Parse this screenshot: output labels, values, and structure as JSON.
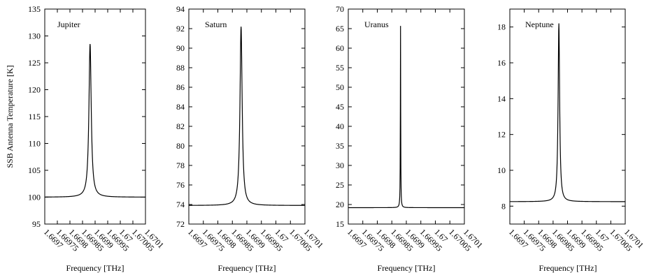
{
  "figure": {
    "ylabel": "SSB Antenna Temperature [K]"
  },
  "chart_data": [
    {
      "type": "line",
      "title": "Jupiter",
      "xlabel": "Frequency [THz]",
      "ylabel": "SSB Antenna Temperature [K]",
      "xlim": [
        1.6697,
        1.6701
      ],
      "ylim": [
        95,
        135
      ],
      "xticks": [
        "1.6697",
        "1.66975",
        "1.6698",
        "1.66985",
        "1.6699",
        "1.66995",
        "1.67",
        "1.67005",
        "1.6701"
      ],
      "yticks": [
        "95",
        "100",
        "105",
        "110",
        "115",
        "120",
        "125",
        "130",
        "135"
      ],
      "grid": false,
      "line": {
        "baseline": 100,
        "peak": 128.5,
        "center": 1.66988,
        "halfwidth": 5.5e-06
      },
      "series": [
        {
          "x": [
            1.6697,
            1.66975,
            1.6698,
            1.66983,
            1.66985,
            1.669865,
            1.66988,
            1.669895,
            1.66991,
            1.66993,
            1.66995,
            1.67,
            1.67005,
            1.6701
          ],
          "y": [
            100.1,
            100.3,
            101.0,
            102.5,
            105.5,
            112.0,
            128.5,
            112.0,
            105.5,
            102.5,
            101.6,
            100.6,
            100.3,
            100.1
          ]
        }
      ]
    },
    {
      "type": "line",
      "title": "Saturn",
      "xlabel": "Frequency [THz]",
      "xlim": [
        1.6697,
        1.6701
      ],
      "ylim": [
        72,
        94
      ],
      "xticks": [
        "1.6697",
        "1.66975",
        "1.6698",
        "1.66985",
        "1.6699",
        "1.66995",
        "1.67",
        "1.67005",
        "1.6701"
      ],
      "yticks": [
        "72",
        "74",
        "76",
        "78",
        "80",
        "82",
        "84",
        "86",
        "88",
        "90",
        "92",
        "94"
      ],
      "grid": false,
      "line": {
        "baseline": 73.9,
        "peak": 92.2,
        "center": 1.66988,
        "halfwidth": 4.5e-06
      },
      "series": [
        {
          "x": [
            1.6697,
            1.66975,
            1.6698,
            1.66983,
            1.66985,
            1.669865,
            1.66988,
            1.669895,
            1.66991,
            1.66993,
            1.66995,
            1.67,
            1.67005,
            1.6701
          ],
          "y": [
            73.9,
            74.0,
            74.4,
            75.3,
            76.8,
            81.0,
            92.2,
            81.0,
            76.8,
            75.3,
            74.6,
            74.1,
            74.0,
            73.9
          ]
        }
      ]
    },
    {
      "type": "line",
      "title": "Uranus",
      "xlabel": "Frequency [THz]",
      "xlim": [
        1.6697,
        1.6701
      ],
      "ylim": [
        15,
        70
      ],
      "xticks": [
        "1.6697",
        "1.66975",
        "1.6698",
        "1.66985",
        "1.6699",
        "1.66995",
        "1.67",
        "1.67005",
        "1.6701"
      ],
      "yticks": [
        "15",
        "20",
        "25",
        "30",
        "35",
        "40",
        "45",
        "50",
        "55",
        "60",
        "65",
        "70"
      ],
      "grid": false,
      "line": {
        "baseline": 19.2,
        "peak": 65.7,
        "center": 1.66988,
        "halfwidth": 7e-07
      },
      "series": [
        {
          "x": [
            1.6697,
            1.6698,
            1.66986,
            1.66987,
            1.669875,
            1.66988,
            1.669885,
            1.66989,
            1.6699,
            1.67,
            1.6701
          ],
          "y": [
            19.2,
            19.2,
            19.4,
            20.5,
            35.0,
            65.7,
            35.0,
            20.5,
            19.4,
            19.2,
            19.2
          ]
        }
      ]
    },
    {
      "type": "line",
      "title": "Neptune",
      "xlabel": "Frequency [THz]",
      "xlim": [
        1.6697,
        1.6701
      ],
      "ylim": [
        7,
        19
      ],
      "xticks": [
        "1.6697",
        "1.66975",
        "1.6698",
        "1.66985",
        "1.6699",
        "1.66995",
        "1.67",
        "1.67005",
        "1.6701"
      ],
      "yticks": [
        "8",
        "10",
        "12",
        "14",
        "16",
        "18"
      ],
      "grid": false,
      "line": {
        "baseline": 8.25,
        "peak": 18.2,
        "center": 1.66987,
        "halfwidth": 3.2e-06
      },
      "series": [
        {
          "x": [
            1.6697,
            1.6698,
            1.66983,
            1.66985,
            1.66986,
            1.66987,
            1.66988,
            1.66989,
            1.66991,
            1.66995,
            1.67,
            1.6701
          ],
          "y": [
            8.25,
            8.3,
            8.6,
            10.5,
            15.0,
            18.2,
            15.0,
            10.5,
            8.7,
            8.35,
            8.28,
            8.25
          ]
        }
      ]
    }
  ]
}
